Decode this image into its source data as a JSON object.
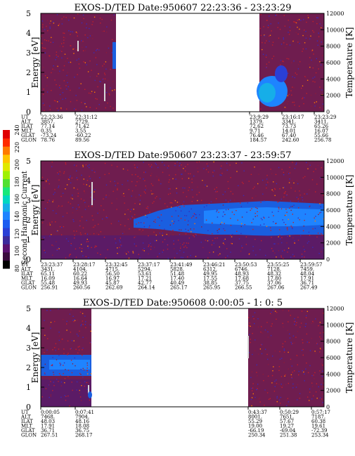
{
  "colorbar": {
    "label": "Second Harmonic Current",
    "ticks": [
      "80",
      "100",
      "120",
      "140",
      "160",
      "180",
      "200",
      "220",
      "240"
    ],
    "colors": [
      "#000000",
      "#3a0b3e",
      "#5b1270",
      "#3d2a9c",
      "#2a3fd6",
      "#1b5cf0",
      "#1f84ff",
      "#16aee8",
      "#00d8c0",
      "#18e87a",
      "#50e030",
      "#a0f000",
      "#e0e800",
      "#ffc400",
      "#ff7a00",
      "#ff2a00",
      "#e00000"
    ]
  },
  "panel_common": {
    "ylabel_left": "Energy [eV]",
    "ylabel_right": "Temperature [K]",
    "left_ticks": [
      "0",
      "1",
      "2",
      "3",
      "4",
      "5"
    ],
    "right_ticks": [
      "0",
      "2000",
      "4000",
      "6000",
      "8000",
      "10000",
      "12000"
    ],
    "row_labels": [
      "UT",
      "ALT",
      "ILAT",
      "MLT",
      "GLAT",
      "GLON"
    ]
  },
  "chart_data": [
    {
      "type": "heatmap",
      "title": "EXOS-D/TED   Date:950607   22:23:36 - 23:23:29",
      "ylim_left": [
        0,
        5
      ],
      "ylim_right": [
        0,
        12000
      ],
      "columns": [
        [
          "22:23:36",
          "3857.",
          "77.14",
          "0.35",
          "-73.24",
          "78.76"
        ],
        [
          "22:31:12",
          "2729.",
          "71.42",
          "3.55",
          "-60.22",
          "89.56"
        ],
        [
          "23:9:29",
          "1379.",
          "72.62",
          "9.71",
          "76.46",
          "184.57"
        ],
        [
          "23:16:17",
          "3341.",
          "73.73",
          "14.01",
          "67.40",
          "242.60"
        ],
        [
          "23:23:29",
          "3411.",
          "65.26",
          "16.07",
          "55.66",
          "256.78"
        ]
      ]
    },
    {
      "type": "heatmap",
      "title": "EXOS-D/TED   Date:950607   23:23:37 - 23:59:57",
      "ylim_left": [
        0,
        5
      ],
      "ylim_right": [
        0,
        12000
      ],
      "columns": [
        [
          "23:23:37",
          "3431.",
          "65.11",
          "16.09",
          "55.48",
          "256.91"
        ],
        [
          "23:28:17",
          "4104.",
          "60.22",
          "16.64",
          "49.93",
          "260.56"
        ],
        [
          "23:32:45",
          "4715.",
          "56.50",
          "16.97",
          "45.87",
          "262.69"
        ],
        [
          "23:37:17",
          "5294.",
          "53.61",
          "17.21",
          "42.77",
          "264.14"
        ],
        [
          "23:41:49",
          "5828.",
          "51.48",
          "17.40",
          "40.49",
          "265.17"
        ],
        [
          "23:46:21",
          "6312.",
          "49.95",
          "17.55",
          "38.85",
          "265.95"
        ],
        [
          "23:50:53",
          "6746.",
          "48.93",
          "17.68",
          "37.75",
          "266.55"
        ],
        [
          "23:55:25",
          "7128.",
          "48.32",
          "17.80",
          "37.06",
          "267.06"
        ],
        [
          "23:59:57",
          "7459.",
          "48.04",
          "17.91",
          "36.71",
          "267.49"
        ]
      ]
    },
    {
      "type": "heatmap",
      "title": "EXOS-D/TED   Date:950608   0:00:05 - 1: 0: 5",
      "ylim_left": [
        0,
        5
      ],
      "ylim_right": [
        0,
        12000
      ],
      "columns": [
        [
          "0:00:05",
          "7468.",
          "48.03",
          "17.91",
          "36.71",
          "267.51"
        ],
        [
          "0:07:41",
          "7904.",
          "48.16",
          "18.08",
          "36.75",
          "268.17"
        ],
        [
          "0:43:37",
          "8001.",
          "55.29",
          "19.00",
          "-66.19",
          "250.34"
        ],
        [
          "0:50:29",
          "7651.",
          "57.67",
          "19.27",
          "-69.04",
          "251.38"
        ],
        [
          "0:57:17",
          "7187.",
          "60.38",
          "19.61",
          "-72.39",
          "253.34"
        ]
      ]
    }
  ]
}
